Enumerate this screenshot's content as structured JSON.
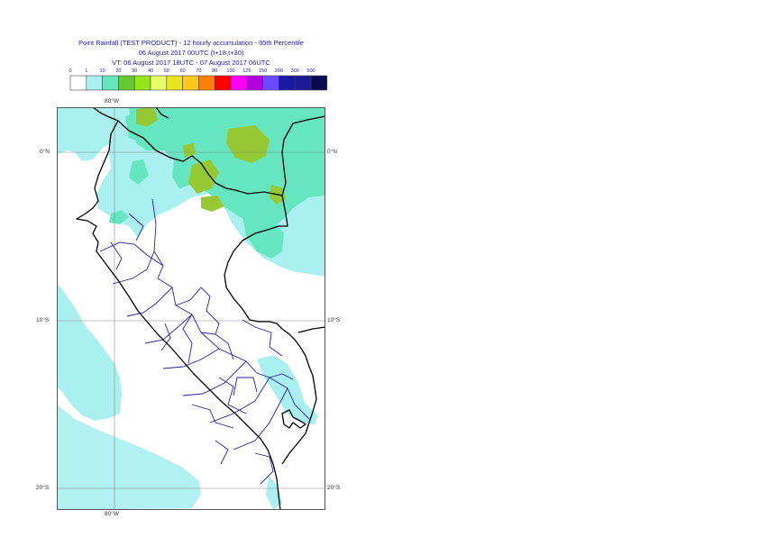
{
  "title_lines": [
    "Point Rainfall (TEST PRODUCT) - 12 hourly accumulation - 95th Percentile",
    "06 August 2017 00UTC (t+18,t+30)",
    "VT: 06 August 2017 18UTC - 07 August 2017 06UTC"
  ],
  "legend": {
    "thresholds": [
      "0",
      "1",
      "10",
      "20",
      "30",
      "40",
      "50",
      "60",
      "70",
      "80",
      "100",
      "125",
      "150",
      "200",
      "300",
      "500"
    ],
    "colors": [
      "#ffffff",
      "#aaf0f0",
      "#66e6c0",
      "#66c833",
      "#96e61a",
      "#e6ff66",
      "#e6e61a",
      "#ffc81a",
      "#ff8000",
      "#ff0000",
      "#ff00ff",
      "#b400dc",
      "#6a4bff",
      "#1a1aa0",
      "#1a1a96",
      "#0a0a50"
    ]
  },
  "axes": {
    "lat_labels": [
      "0°N",
      "10°S",
      "20°S"
    ],
    "lon_labels": [
      "80°W",
      "80°W"
    ]
  },
  "colors": {
    "land": "#ffffff",
    "light_rain": "#aaf0f0",
    "moderate_rain": "#66e6c0",
    "heavy_rain": "#96c833",
    "coastline": "#000000",
    "admin_boundaries": "#2222aa",
    "gridlines": "#888888"
  }
}
